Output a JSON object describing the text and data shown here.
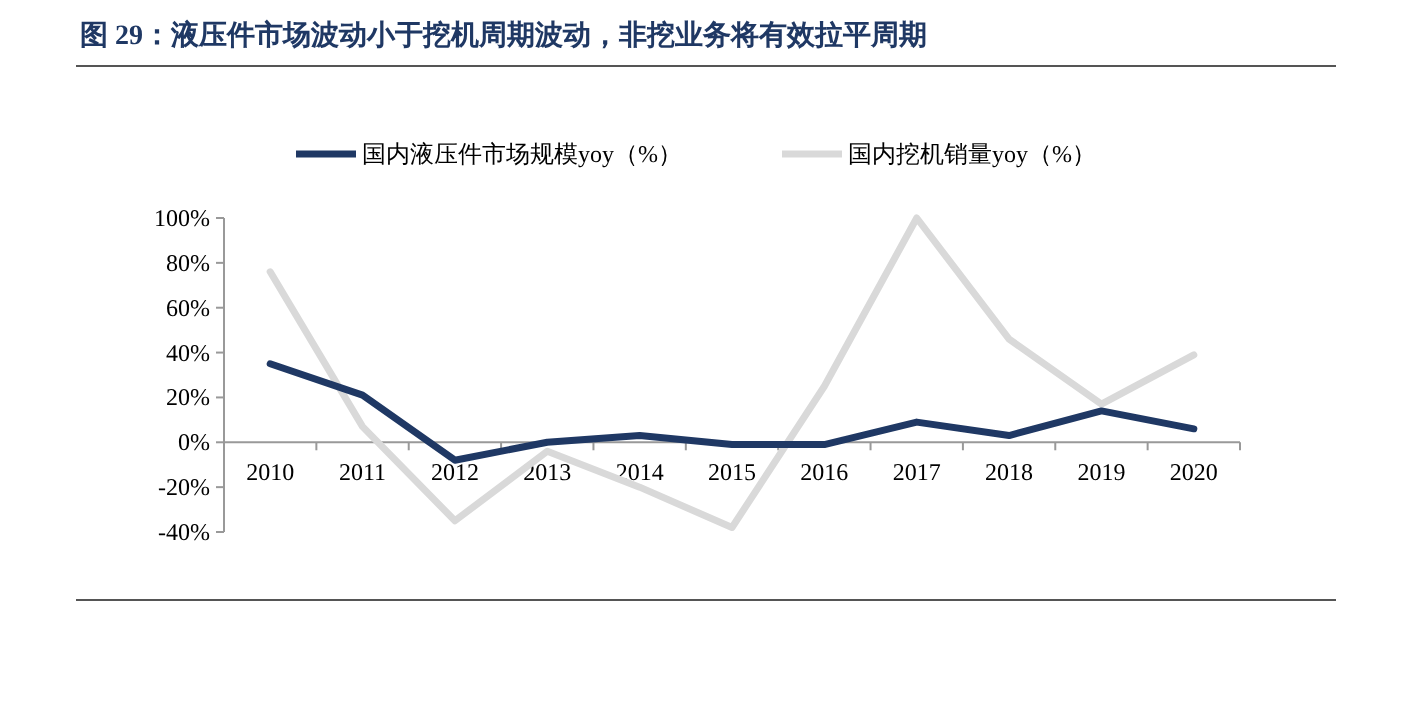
{
  "chart_data": {
    "type": "line",
    "title": "图 29：液压件市场波动小于挖机周期波动，非挖业务将有效拉平周期",
    "categories": [
      "2010",
      "2011",
      "2012",
      "2013",
      "2014",
      "2015",
      "2016",
      "2017",
      "2018",
      "2019",
      "2020"
    ],
    "series": [
      {
        "name": "国内液压件市场规模yoy（%）",
        "color": "#1f3864",
        "values": [
          35,
          21,
          -8,
          0,
          3,
          -1,
          -1,
          9,
          3,
          14,
          6
        ]
      },
      {
        "name": "国内挖机销量yoy（%）",
        "color": "#d9d9d9",
        "values": [
          76,
          7,
          -35,
          -4,
          -20,
          -38,
          25,
          100,
          46,
          17,
          39
        ]
      }
    ],
    "ylim": [
      -40,
      100
    ],
    "yticks": [
      {
        "value": -40,
        "label": "-40%"
      },
      {
        "value": -20,
        "label": "-20%"
      },
      {
        "value": 0,
        "label": "0%"
      },
      {
        "value": 20,
        "label": "20%"
      },
      {
        "value": 40,
        "label": "40%"
      },
      {
        "value": 60,
        "label": "60%"
      },
      {
        "value": 80,
        "label": "80%"
      },
      {
        "value": 100,
        "label": "100%"
      }
    ],
    "legend": "top",
    "grid": false,
    "marker": "none",
    "line_style": "solid"
  }
}
